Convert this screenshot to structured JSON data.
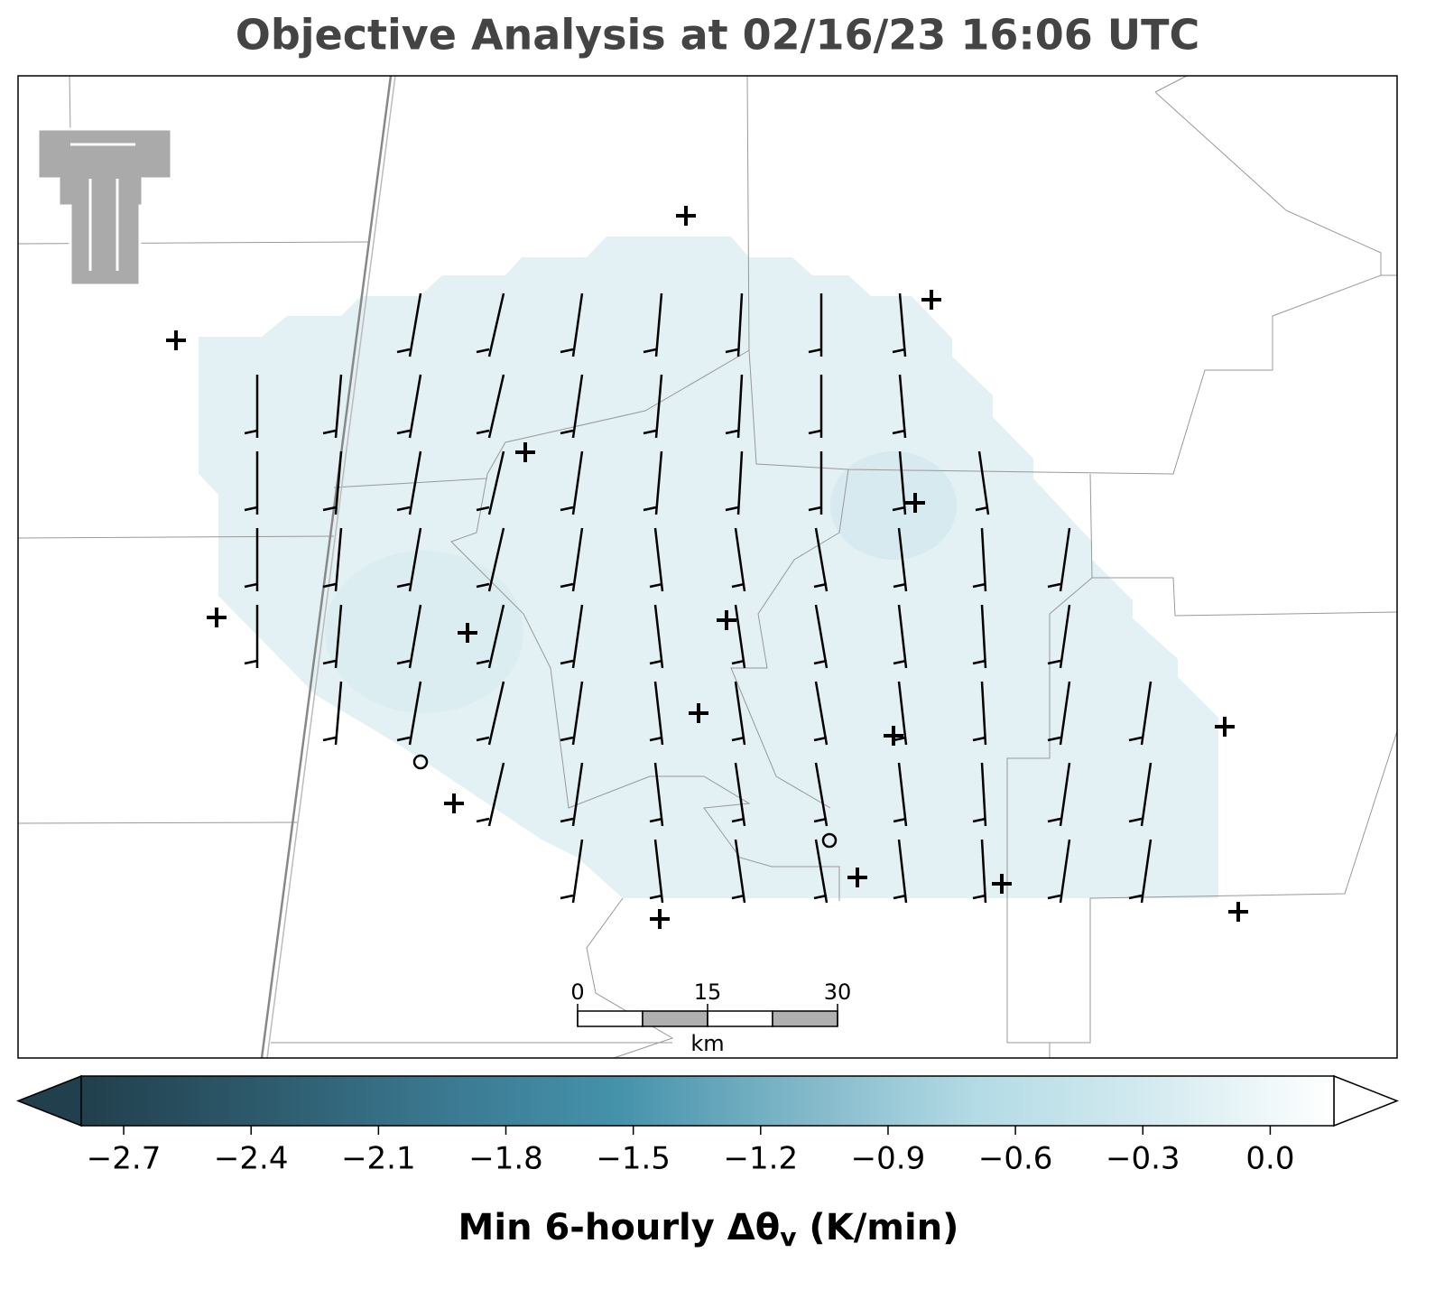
{
  "title": "Objective Analysis at 02/16/23 16:06 UTC",
  "colorbar": {
    "label_main": "Min 6-hourly Δθ",
    "label_sub": "v",
    "label_unit": " (K/min)",
    "clim": [
      -2.8,
      0.15
    ],
    "extend": "both",
    "colors": [
      "#213f4c",
      "#2d5a6c",
      "#3a7890",
      "#4592ab",
      "#7fb6c8",
      "#b3dbe5",
      "#d4ebf0",
      "#ffffff"
    ],
    "ticks": [
      {
        "value": -2.7,
        "label": "−2.7"
      },
      {
        "value": -2.4,
        "label": "−2.4"
      },
      {
        "value": -2.1,
        "label": "−2.1"
      },
      {
        "value": -1.8,
        "label": "−1.8"
      },
      {
        "value": -1.5,
        "label": "−1.5"
      },
      {
        "value": -1.2,
        "label": "−1.2"
      },
      {
        "value": -0.9,
        "label": "−0.9"
      },
      {
        "value": -0.6,
        "label": "−0.6"
      },
      {
        "value": -0.3,
        "label": "−0.3"
      },
      {
        "value": 0,
        "label": "0.0"
      }
    ]
  },
  "scale_bar": {
    "ticks": [
      0,
      15,
      30
    ],
    "unit": "km"
  }
}
